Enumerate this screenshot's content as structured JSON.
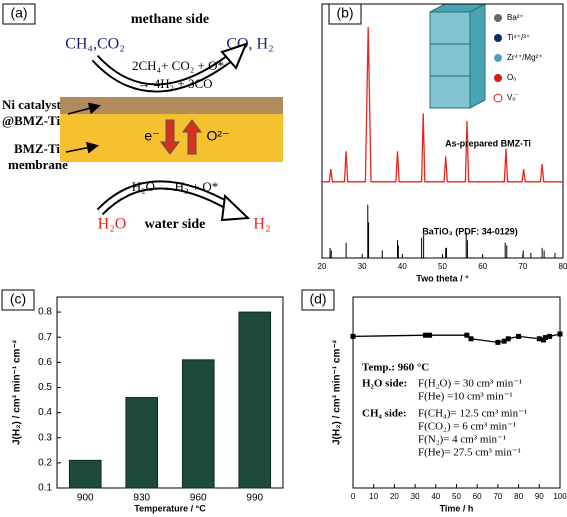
{
  "diagram": {
    "panel_label": "(a)",
    "top_label": "methane side",
    "feed_top": "CH₄,CO₂",
    "product_top": "CO, H₂",
    "reaction_top_1": "2CH₄+ CO₂ + O*",
    "reaction_top_2": "→ 4H₂ + 3CO",
    "layer_label_1": "Ni catalyst",
    "layer_label_2": "@BMZ-Ti",
    "membrane_label_1": "BMZ-Ti",
    "membrane_label_2": "membrane",
    "electron": "e⁻",
    "oxygen_ion": "O²⁻",
    "reaction_bottom": "H₂O → H₂ + O*",
    "feed_bottom": "H₂O",
    "bottom_label": "water side",
    "product_bottom": "H₂"
  },
  "chart_data": [
    {
      "type": "line",
      "panel_label": "(b)",
      "xlabel": "Two theta / °",
      "xlim": [
        20,
        80
      ],
      "xticks": [
        20,
        30,
        40,
        50,
        60,
        70,
        80
      ],
      "ylim": [
        0,
        100
      ],
      "inset_legend": [
        "Ba²⁺",
        "Ti⁴⁺/³⁺",
        "Zr⁴⁺/Mg²⁺",
        "Oₒ",
        "Vₒ¨"
      ],
      "series": [
        {
          "name": "As-prepared BMZ-Ti",
          "color": "#e8261e",
          "style": "line",
          "x": [
            20,
            21.8,
            22.2,
            22.6,
            25.6,
            26.0,
            26.4,
            30.8,
            31.5,
            32.2,
            38.4,
            38.8,
            39.2,
            44.8,
            45.2,
            45.6,
            50.4,
            50.8,
            51.2,
            55.7,
            56.1,
            56.5,
            65.4,
            65.8,
            66.2,
            69.8,
            70.2,
            70.6,
            74.4,
            74.8,
            75.2,
            80
          ],
          "values": [
            30,
            30,
            35,
            30,
            30,
            42,
            30,
            30,
            91,
            30,
            30,
            42,
            30,
            30,
            57,
            30,
            30,
            40,
            30,
            30,
            54,
            30,
            30,
            43,
            30,
            30,
            35,
            30,
            30,
            37,
            30,
            30
          ]
        },
        {
          "name": "BaTiO₃ (PDF: 34-0129)",
          "color": "#000000",
          "style": "stick",
          "x": [
            22.0,
            22.3,
            26.0,
            31.4,
            31.6,
            35.0,
            38.8,
            39.0,
            44.8,
            45.3,
            50.8,
            51.0,
            55.9,
            56.2,
            65.6,
            66.0,
            70.1,
            72.0,
            74.8,
            75.3,
            78.0
          ],
          "values": [
            4,
            3,
            6,
            21,
            14,
            3,
            7,
            5,
            8,
            9,
            4,
            4,
            10,
            7,
            6,
            5,
            3,
            2,
            4,
            3,
            2
          ]
        }
      ]
    },
    {
      "type": "bar",
      "panel_label": "(c)",
      "xlabel": "Temperature / °C",
      "ylabel": "J(H₂) / cm³ min⁻¹ cm⁻²",
      "categories": [
        "900",
        "930",
        "960",
        "990"
      ],
      "values": [
        0.21,
        0.46,
        0.61,
        0.8
      ],
      "color": "#1d4a3c",
      "ylim": [
        0.1,
        0.86
      ],
      "yticks": [
        0.1,
        0.2,
        0.3,
        0.4,
        0.5,
        0.6,
        0.7,
        0.8
      ]
    },
    {
      "type": "line",
      "panel_label": "(d)",
      "xlabel": "Time / h",
      "ylabel": "J(H₂) / cm³ min⁻¹ cm⁻²",
      "xlim": [
        0,
        100
      ],
      "xticks": [
        0,
        10,
        20,
        30,
        40,
        50,
        60,
        70,
        80,
        90,
        100
      ],
      "ylim": [
        0,
        0.8
      ],
      "series": [
        {
          "color": "#000000",
          "style": "line",
          "marker": "square",
          "x": [
            0,
            35,
            37,
            55,
            57,
            70,
            73,
            75,
            80,
            90,
            92,
            93,
            95,
            100
          ],
          "values": [
            0.635,
            0.64,
            0.64,
            0.64,
            0.625,
            0.61,
            0.615,
            0.625,
            0.635,
            0.625,
            0.62,
            0.63,
            0.635,
            0.645
          ]
        }
      ],
      "annotations": [
        "Temp.: 960 °C",
        "H₂O side:",
        "F(H₂O) = 30 cm³ min⁻¹",
        "F(He) =10 cm³ min⁻¹",
        "CH₄ side:",
        "F(CH₄)= 12.5 cm³ min⁻¹",
        "F(CO₂) = 6 cm³ min⁻¹",
        "F(N₂)= 4 cm³ min⁻¹",
        "F(He)= 27.5 cm³ min⁻¹"
      ]
    }
  ]
}
